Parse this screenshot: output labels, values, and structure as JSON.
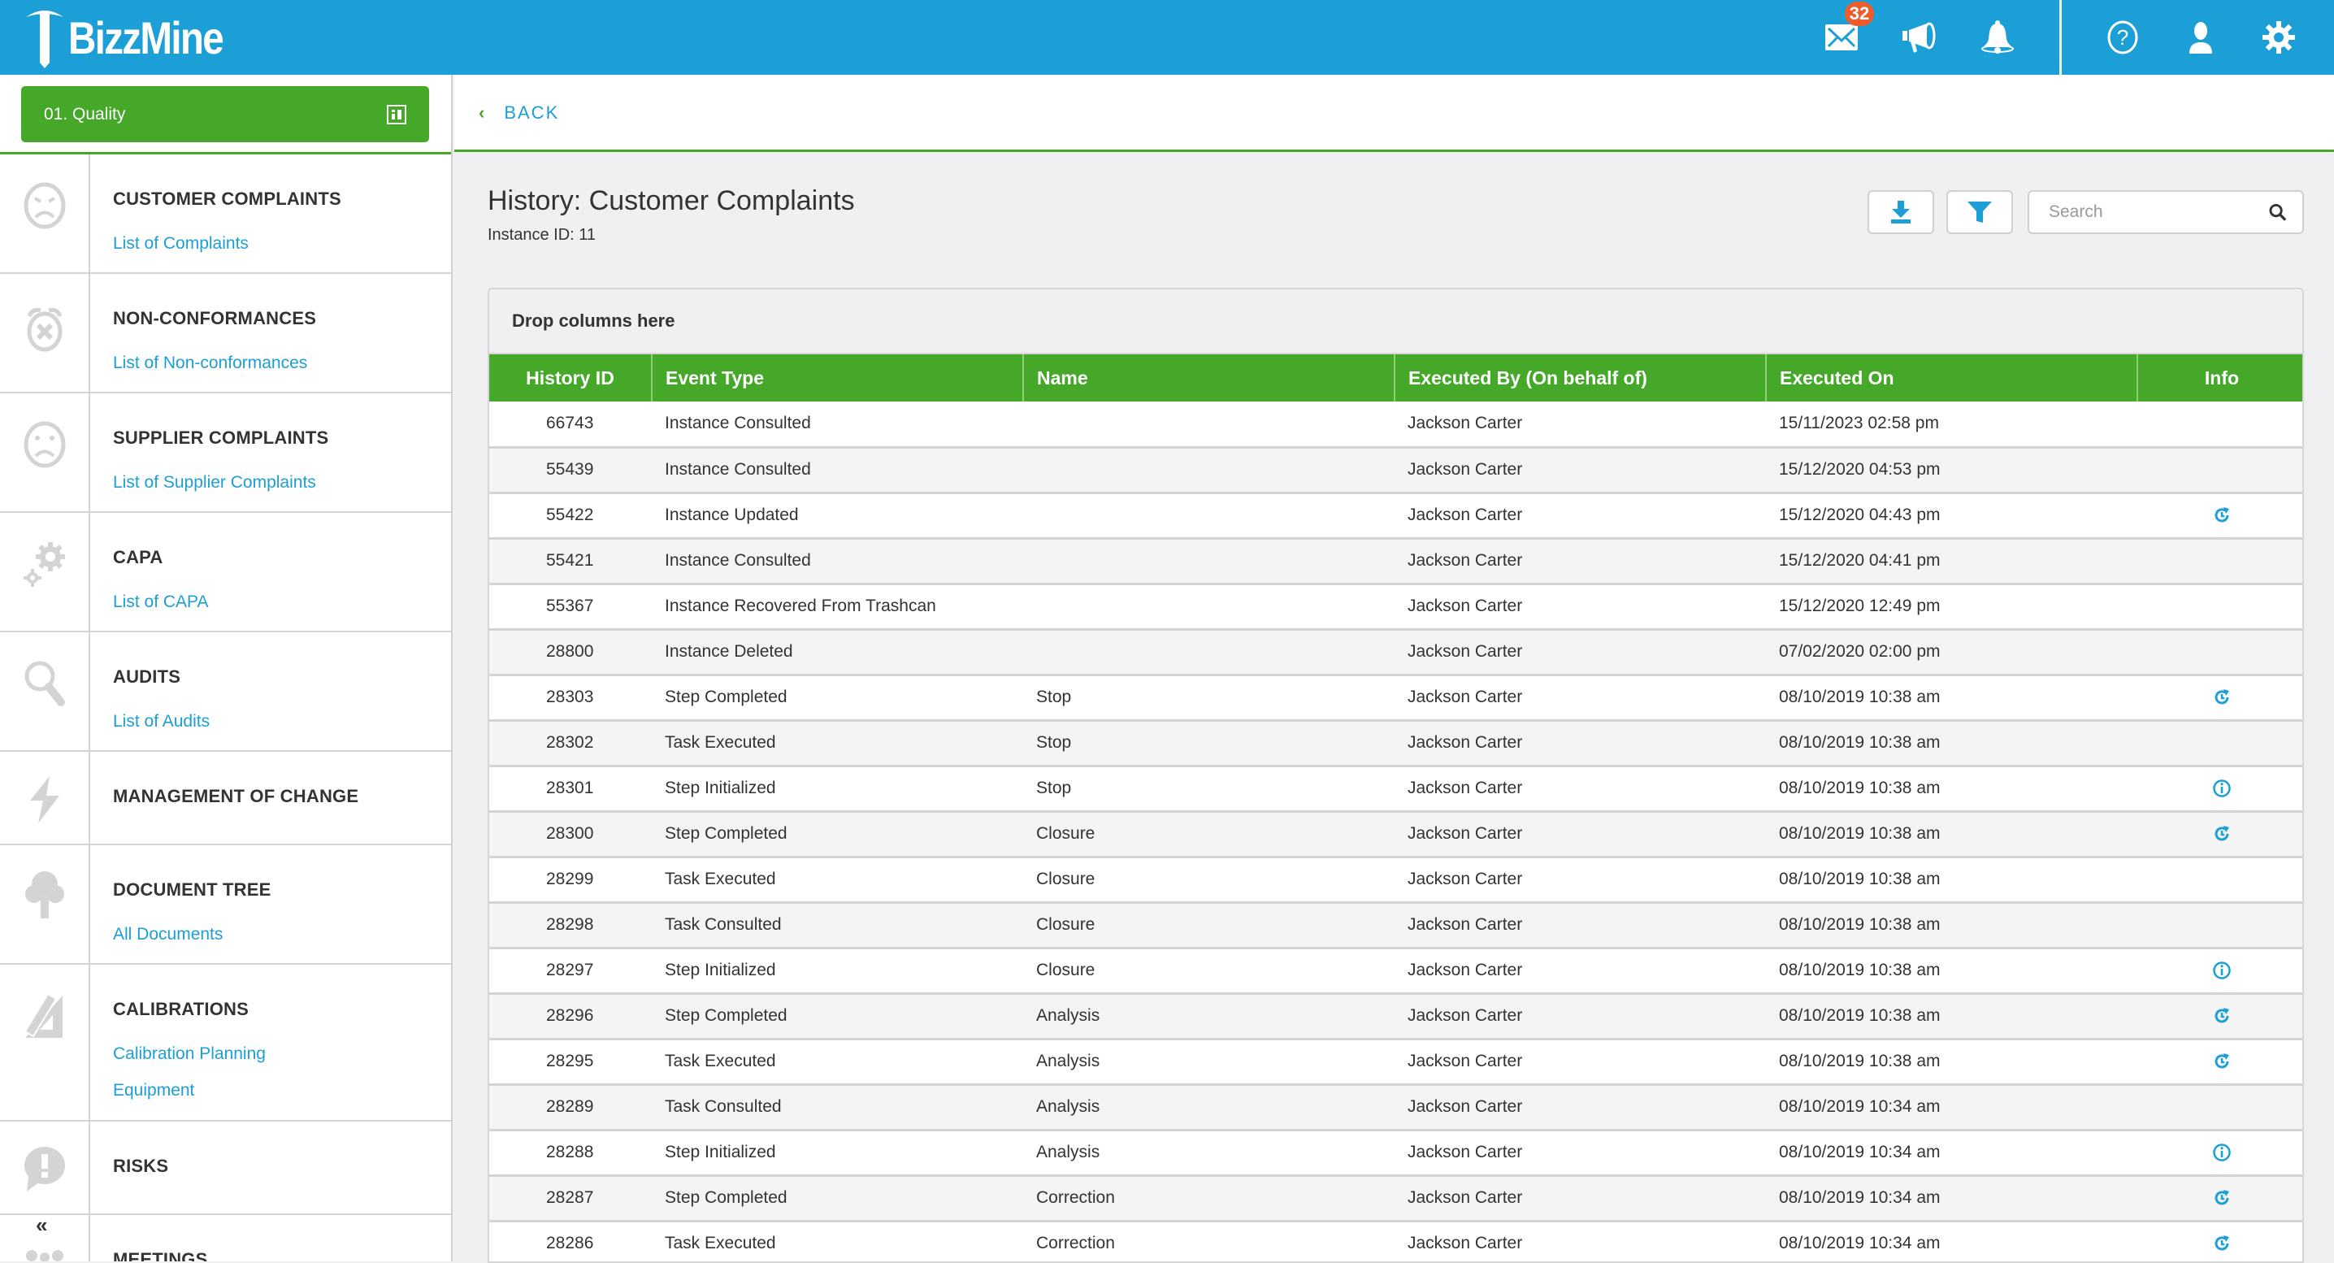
{
  "app": {
    "logo_text": "BizzMine",
    "brand_color": "#1c9fd6",
    "accent_color": "#46a829"
  },
  "topbar": {
    "icons": [
      {
        "name": "mail-icon",
        "badge": "32"
      },
      {
        "name": "megaphone-icon"
      },
      {
        "name": "bell-icon"
      },
      {
        "name": "help-icon"
      },
      {
        "name": "user-icon"
      },
      {
        "name": "gear-icon"
      }
    ],
    "mail_badge": "32",
    "badge_color": "#f05b2b"
  },
  "sidebar": {
    "module_button": "01. Quality",
    "collapse_label": "«",
    "items": [
      {
        "title": "CUSTOMER COMPLAINTS",
        "icon": "angry-face-icon",
        "links": [
          "List of Complaints"
        ]
      },
      {
        "title": "NON-CONFORMANCES",
        "icon": "alarm-x-icon",
        "links": [
          "List of Non-conformances"
        ]
      },
      {
        "title": "SUPPLIER COMPLAINTS",
        "icon": "sad-face-icon",
        "links": [
          "List of Supplier Complaints"
        ]
      },
      {
        "title": "CAPA",
        "icon": "gears-icon",
        "links": [
          "List of CAPA"
        ]
      },
      {
        "title": "AUDITS",
        "icon": "magnifier-icon",
        "links": [
          "List of Audits"
        ]
      },
      {
        "title": "MANAGEMENT OF CHANGE",
        "icon": "lightning-icon",
        "links": []
      },
      {
        "title": "DOCUMENT TREE",
        "icon": "tree-icon",
        "links": [
          "All Documents"
        ]
      },
      {
        "title": "CALIBRATIONS",
        "icon": "ruler-pencil-icon",
        "links": [
          "Calibration Planning",
          "Equipment"
        ]
      },
      {
        "title": "RISKS",
        "icon": "alert-bubble-icon",
        "links": []
      },
      {
        "title": "MEETINGS",
        "icon": "people-icon",
        "links": []
      }
    ]
  },
  "main": {
    "back_label": "BACK",
    "title": "History: Customer Complaints",
    "subtitle": "Instance ID: 11",
    "search_placeholder": "Search",
    "group_drop_label": "Drop columns here",
    "columns": [
      "History ID",
      "Event Type",
      "Name",
      "Executed By (On behalf of)",
      "Executed On",
      "Info"
    ],
    "rows": [
      {
        "id": "66743",
        "event": "Instance Consulted",
        "name": "",
        "by": "Jackson Carter",
        "on": "15/11/2023 02:58 pm",
        "info": ""
      },
      {
        "id": "55439",
        "event": "Instance Consulted",
        "name": "",
        "by": "Jackson Carter",
        "on": "15/12/2020 04:53 pm",
        "info": ""
      },
      {
        "id": "55422",
        "event": "Instance Updated",
        "name": "",
        "by": "Jackson Carter",
        "on": "15/12/2020 04:43 pm",
        "info": "history"
      },
      {
        "id": "55421",
        "event": "Instance Consulted",
        "name": "",
        "by": "Jackson Carter",
        "on": "15/12/2020 04:41 pm",
        "info": ""
      },
      {
        "id": "55367",
        "event": "Instance Recovered From Trashcan",
        "name": "",
        "by": "Jackson Carter",
        "on": "15/12/2020 12:49 pm",
        "info": ""
      },
      {
        "id": "28800",
        "event": "Instance Deleted",
        "name": "",
        "by": "Jackson Carter",
        "on": "07/02/2020 02:00 pm",
        "info": ""
      },
      {
        "id": "28303",
        "event": "Step Completed",
        "name": "Stop",
        "by": "Jackson Carter",
        "on": "08/10/2019 10:38 am",
        "info": "history"
      },
      {
        "id": "28302",
        "event": "Task Executed",
        "name": "Stop",
        "by": "Jackson Carter",
        "on": "08/10/2019 10:38 am",
        "info": ""
      },
      {
        "id": "28301",
        "event": "Step Initialized",
        "name": "Stop",
        "by": "Jackson Carter",
        "on": "08/10/2019 10:38 am",
        "info": "info"
      },
      {
        "id": "28300",
        "event": "Step Completed",
        "name": "Closure",
        "by": "Jackson Carter",
        "on": "08/10/2019 10:38 am",
        "info": "history"
      },
      {
        "id": "28299",
        "event": "Task Executed",
        "name": "Closure",
        "by": "Jackson Carter",
        "on": "08/10/2019 10:38 am",
        "info": ""
      },
      {
        "id": "28298",
        "event": "Task Consulted",
        "name": "Closure",
        "by": "Jackson Carter",
        "on": "08/10/2019 10:38 am",
        "info": ""
      },
      {
        "id": "28297",
        "event": "Step Initialized",
        "name": "Closure",
        "by": "Jackson Carter",
        "on": "08/10/2019 10:38 am",
        "info": "info"
      },
      {
        "id": "28296",
        "event": "Step Completed",
        "name": "Analysis",
        "by": "Jackson Carter",
        "on": "08/10/2019 10:38 am",
        "info": "history"
      },
      {
        "id": "28295",
        "event": "Task Executed",
        "name": "Analysis",
        "by": "Jackson Carter",
        "on": "08/10/2019 10:38 am",
        "info": "history"
      },
      {
        "id": "28289",
        "event": "Task Consulted",
        "name": "Analysis",
        "by": "Jackson Carter",
        "on": "08/10/2019 10:34 am",
        "info": ""
      },
      {
        "id": "28288",
        "event": "Step Initialized",
        "name": "Analysis",
        "by": "Jackson Carter",
        "on": "08/10/2019 10:34 am",
        "info": "info"
      },
      {
        "id": "28287",
        "event": "Step Completed",
        "name": "Correction",
        "by": "Jackson Carter",
        "on": "08/10/2019 10:34 am",
        "info": "history"
      },
      {
        "id": "28286",
        "event": "Task Executed",
        "name": "Correction",
        "by": "Jackson Carter",
        "on": "08/10/2019 10:34 am",
        "info": "history"
      }
    ]
  }
}
